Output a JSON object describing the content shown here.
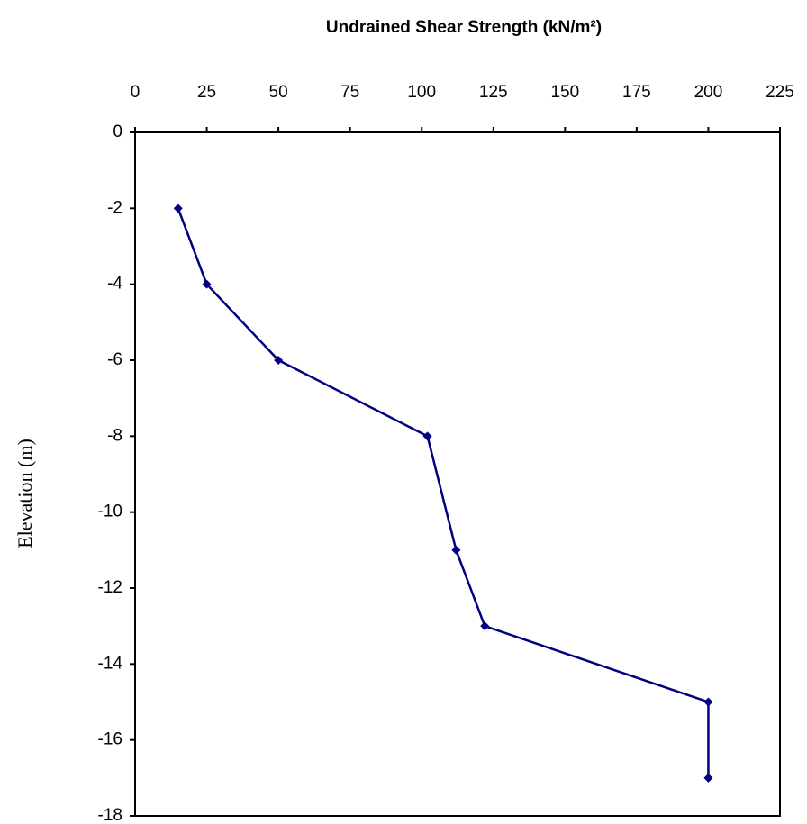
{
  "chart_data": {
    "type": "line",
    "title": "Undrained Shear Strength (kN/m²)",
    "y_label": "Elevation (m)",
    "x": [
      15,
      25,
      50,
      102,
      112,
      122,
      200,
      200
    ],
    "values": [
      -2,
      -4,
      -6,
      -8,
      -11,
      -13,
      -15,
      -17
    ],
    "color": "#000080",
    "xlim": [
      0,
      225
    ],
    "xticks": [
      0,
      25,
      50,
      75,
      100,
      125,
      150,
      175,
      200,
      225
    ],
    "ylim": [
      -18,
      0
    ],
    "yticks": [
      0,
      -2,
      -4,
      -6,
      -8,
      -10,
      -12,
      -14,
      -16,
      -18
    ],
    "x_axis_position": "top"
  }
}
